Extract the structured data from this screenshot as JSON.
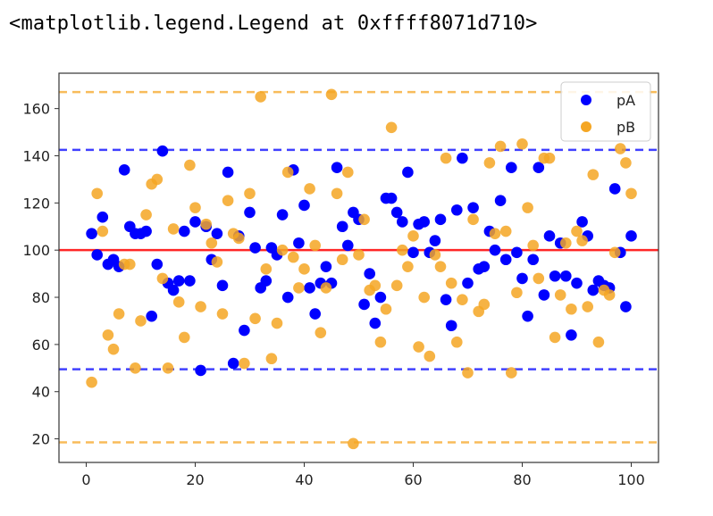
{
  "output_line": "<matplotlib.legend.Legend at 0xffff8071d710>",
  "chart_data": {
    "type": "scatter",
    "title": "",
    "xlabel": "",
    "ylabel": "",
    "xlim": [
      -5,
      105
    ],
    "ylim": [
      10,
      175
    ],
    "x_ticks": [
      0,
      20,
      40,
      60,
      80,
      100
    ],
    "y_ticks": [
      20,
      40,
      60,
      80,
      100,
      120,
      140,
      160
    ],
    "grid": false,
    "legend_position": "top-right",
    "series": [
      {
        "name": "pA",
        "color": "#0000ff",
        "x": [
          1,
          2,
          3,
          4,
          5,
          6,
          7,
          8,
          9,
          10,
          11,
          12,
          13,
          14,
          15,
          16,
          17,
          18,
          19,
          20,
          21,
          22,
          23,
          24,
          25,
          26,
          27,
          28,
          29,
          30,
          31,
          32,
          33,
          34,
          35,
          36,
          37,
          38,
          39,
          40,
          41,
          42,
          43,
          44,
          45,
          46,
          47,
          48,
          49,
          50,
          51,
          52,
          53,
          54,
          55,
          56,
          57,
          58,
          59,
          60,
          61,
          62,
          63,
          64,
          65,
          66,
          67,
          68,
          69,
          70,
          71,
          72,
          73,
          74,
          75,
          76,
          77,
          78,
          79,
          80,
          81,
          82,
          83,
          84,
          85,
          86,
          87,
          88,
          89,
          90,
          91,
          92,
          93,
          94,
          95,
          96,
          97,
          98,
          99,
          100
        ],
        "y": [
          107,
          98,
          114,
          94,
          96,
          93,
          134,
          110,
          107,
          107,
          108,
          72,
          94,
          142,
          86,
          83,
          87,
          108,
          87,
          112,
          49,
          110,
          96,
          107,
          85,
          133,
          52,
          106,
          66,
          116,
          101,
          84,
          87,
          101,
          98,
          115,
          80,
          134,
          103,
          119,
          84,
          73,
          86,
          93,
          86,
          135,
          110,
          102,
          116,
          113,
          77,
          90,
          69,
          80,
          122,
          122,
          116,
          112,
          133,
          99,
          111,
          112,
          99,
          104,
          113,
          79,
          68,
          117,
          139,
          86,
          118,
          92,
          93,
          108,
          100,
          121,
          96,
          135,
          99,
          88,
          72,
          96,
          135,
          81,
          106,
          89,
          103,
          89,
          64,
          86,
          112,
          106,
          83,
          87,
          85,
          84,
          126,
          99,
          76,
          106
        ]
      },
      {
        "name": "pB",
        "color": "#f5a623",
        "x": [
          1,
          2,
          3,
          4,
          5,
          6,
          7,
          8,
          9,
          10,
          11,
          12,
          13,
          14,
          15,
          16,
          17,
          18,
          19,
          20,
          21,
          22,
          23,
          24,
          25,
          26,
          27,
          28,
          29,
          30,
          31,
          32,
          33,
          34,
          35,
          36,
          37,
          38,
          39,
          40,
          41,
          42,
          43,
          44,
          45,
          46,
          47,
          48,
          49,
          50,
          51,
          52,
          53,
          54,
          55,
          56,
          57,
          58,
          59,
          60,
          61,
          62,
          63,
          64,
          65,
          66,
          67,
          68,
          69,
          70,
          71,
          72,
          73,
          74,
          75,
          76,
          77,
          78,
          79,
          80,
          81,
          82,
          83,
          84,
          85,
          86,
          87,
          88,
          89,
          90,
          91,
          92,
          93,
          94,
          95,
          96,
          97,
          98,
          99,
          100
        ],
        "y": [
          44,
          124,
          108,
          64,
          58,
          73,
          94,
          94,
          50,
          70,
          115,
          128,
          130,
          88,
          50,
          109,
          78,
          63,
          136,
          118,
          76,
          111,
          103,
          95,
          73,
          121,
          107,
          105,
          52,
          124,
          71,
          165,
          92,
          54,
          69,
          100,
          133,
          97,
          84,
          92,
          126,
          102,
          65,
          84,
          166,
          124,
          96,
          133,
          18,
          98,
          113,
          83,
          85,
          61,
          75,
          152,
          85,
          100,
          93,
          106,
          59,
          80,
          55,
          98,
          93,
          139,
          86,
          61,
          79,
          48,
          113,
          74,
          77,
          137,
          107,
          144,
          108,
          48,
          82,
          145,
          118,
          102,
          88,
          139,
          139,
          63,
          81,
          103,
          75,
          108,
          104,
          76,
          132,
          61,
          83,
          81,
          99,
          143,
          137,
          124
        ]
      }
    ],
    "reference_lines": [
      {
        "y": 100,
        "color": "#ff0000",
        "style": "solid"
      },
      {
        "y": 142.5,
        "color": "#0000ff",
        "style": "dashed"
      },
      {
        "y": 49.5,
        "color": "#0000ff",
        "style": "dashed"
      },
      {
        "y": 167,
        "color": "#f5a623",
        "style": "dashed"
      },
      {
        "y": 18.5,
        "color": "#f5a623",
        "style": "dashed"
      }
    ]
  }
}
